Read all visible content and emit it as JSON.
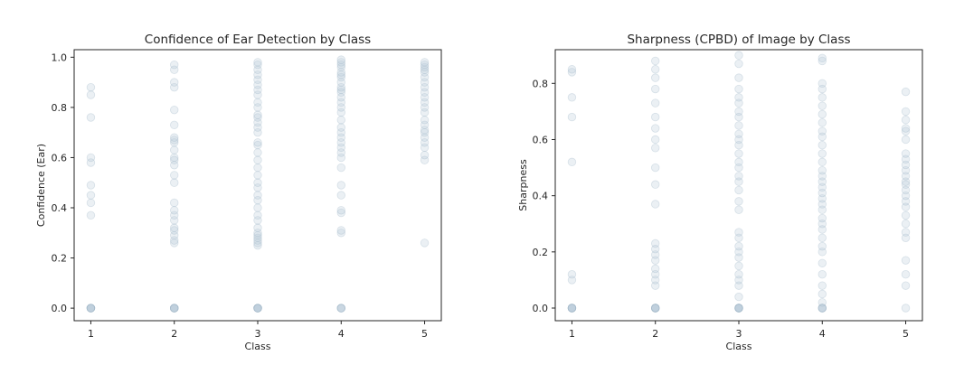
{
  "chart_data": [
    {
      "type": "scatter",
      "title": "Confidence of Ear Detection by Class",
      "xlabel": "Class",
      "ylabel": "Confidence (Ear)",
      "xticks": [
        "1",
        "2",
        "3",
        "4",
        "5"
      ],
      "yticks": [
        "0.0",
        "0.2",
        "0.4",
        "0.6",
        "0.8",
        "1.0"
      ],
      "xlim": [
        0.8,
        5.2
      ],
      "ylim": [
        -0.05,
        1.03
      ],
      "grid": false,
      "point_color": "#b6c9d8",
      "points": {
        "1": [
          0.0,
          0.0,
          0.0,
          0.0,
          0.0,
          0.0,
          0.37,
          0.42,
          0.45,
          0.49,
          0.58,
          0.6,
          0.76,
          0.85,
          0.88
        ],
        "2": [
          0.0,
          0.0,
          0.0,
          0.0,
          0.0,
          0.0,
          0.26,
          0.27,
          0.29,
          0.31,
          0.32,
          0.35,
          0.37,
          0.39,
          0.42,
          0.5,
          0.53,
          0.57,
          0.59,
          0.6,
          0.63,
          0.66,
          0.67,
          0.68,
          0.73,
          0.79,
          0.88,
          0.9,
          0.95,
          0.97
        ],
        "3": [
          0.0,
          0.0,
          0.0,
          0.0,
          0.0,
          0.0,
          0.25,
          0.26,
          0.27,
          0.28,
          0.29,
          0.3,
          0.32,
          0.35,
          0.37,
          0.4,
          0.43,
          0.45,
          0.48,
          0.5,
          0.53,
          0.56,
          0.59,
          0.62,
          0.65,
          0.66,
          0.7,
          0.72,
          0.74,
          0.76,
          0.77,
          0.8,
          0.82,
          0.85,
          0.87,
          0.89,
          0.91,
          0.93,
          0.95,
          0.97,
          0.98
        ],
        "4": [
          0.0,
          0.0,
          0.0,
          0.0,
          0.3,
          0.31,
          0.38,
          0.39,
          0.45,
          0.49,
          0.56,
          0.6,
          0.62,
          0.64,
          0.66,
          0.68,
          0.7,
          0.72,
          0.75,
          0.78,
          0.8,
          0.82,
          0.84,
          0.86,
          0.87,
          0.88,
          0.9,
          0.92,
          0.93,
          0.94,
          0.96,
          0.97,
          0.98,
          0.99
        ],
        "5": [
          0.26,
          0.59,
          0.61,
          0.64,
          0.66,
          0.68,
          0.7,
          0.71,
          0.73,
          0.75,
          0.78,
          0.8,
          0.82,
          0.84,
          0.86,
          0.88,
          0.9,
          0.92,
          0.94,
          0.95,
          0.96,
          0.97,
          0.98
        ]
      }
    },
    {
      "type": "scatter",
      "title": "Sharpness (CPBD) of Image by Class",
      "xlabel": "Class",
      "ylabel": "Sharpness",
      "xticks": [
        "1",
        "2",
        "3",
        "4",
        "5"
      ],
      "yticks": [
        "0.0",
        "0.2",
        "0.4",
        "0.6",
        "0.8"
      ],
      "xlim": [
        0.8,
        5.2
      ],
      "ylim": [
        -0.045,
        0.92
      ],
      "grid": false,
      "point_color": "#b6c9d8",
      "points": {
        "1": [
          0.0,
          0.0,
          0.0,
          0.0,
          0.0,
          0.0,
          0.1,
          0.12,
          0.52,
          0.68,
          0.75,
          0.84,
          0.85
        ],
        "2": [
          0.0,
          0.0,
          0.0,
          0.0,
          0.0,
          0.0,
          0.08,
          0.1,
          0.12,
          0.14,
          0.17,
          0.19,
          0.21,
          0.23,
          0.37,
          0.44,
          0.5,
          0.57,
          0.6,
          0.64,
          0.68,
          0.73,
          0.78,
          0.82,
          0.85,
          0.88
        ],
        "3": [
          0.0,
          0.0,
          0.0,
          0.0,
          0.0,
          0.0,
          0.04,
          0.08,
          0.1,
          0.12,
          0.15,
          0.18,
          0.2,
          0.22,
          0.25,
          0.27,
          0.35,
          0.38,
          0.42,
          0.45,
          0.47,
          0.5,
          0.52,
          0.55,
          0.58,
          0.6,
          0.62,
          0.65,
          0.68,
          0.7,
          0.73,
          0.75,
          0.78,
          0.82,
          0.87,
          0.9
        ],
        "4": [
          0.0,
          0.0,
          0.0,
          0.0,
          0.02,
          0.05,
          0.08,
          0.12,
          0.16,
          0.2,
          0.22,
          0.25,
          0.28,
          0.3,
          0.32,
          0.35,
          0.37,
          0.39,
          0.41,
          0.43,
          0.45,
          0.47,
          0.49,
          0.52,
          0.55,
          0.58,
          0.61,
          0.63,
          0.66,
          0.69,
          0.72,
          0.75,
          0.78,
          0.8,
          0.88,
          0.89
        ],
        "5": [
          0.0,
          0.08,
          0.12,
          0.17,
          0.25,
          0.27,
          0.3,
          0.33,
          0.36,
          0.38,
          0.4,
          0.42,
          0.44,
          0.45,
          0.47,
          0.49,
          0.51,
          0.53,
          0.55,
          0.6,
          0.63,
          0.64,
          0.67,
          0.7,
          0.77
        ]
      }
    }
  ]
}
